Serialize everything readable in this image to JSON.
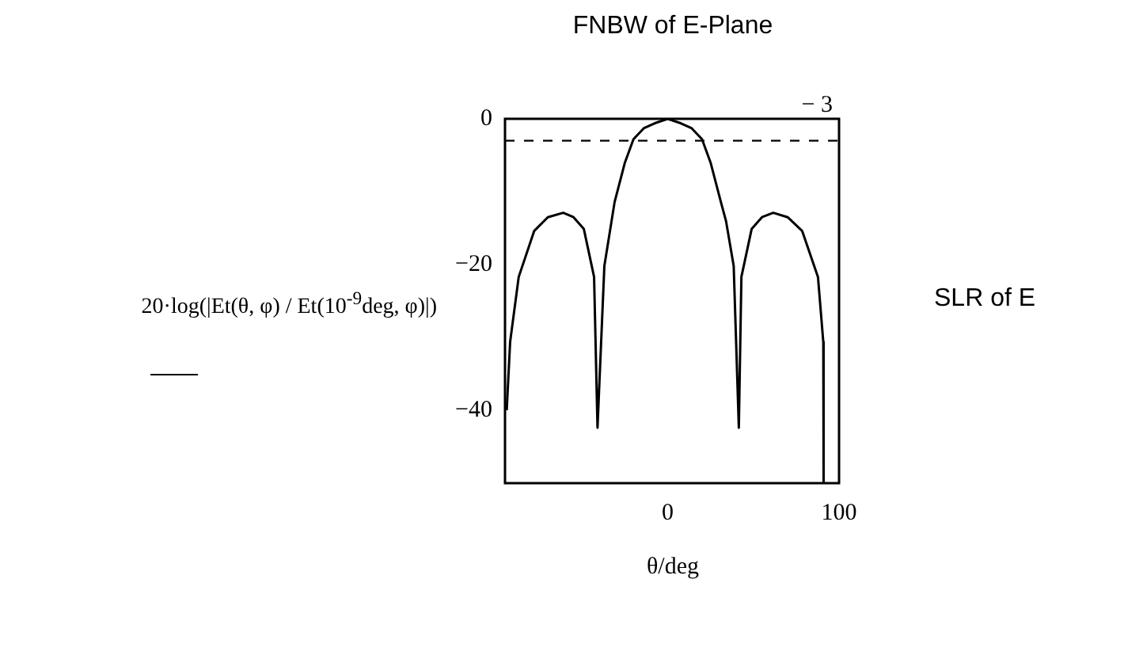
{
  "chart_data": {
    "type": "line",
    "title": "FNBW of E-Plane",
    "xlabel": "θ/deg",
    "ylabel": "20·log(|Et(θ, φ) / Et(10$^{-9}$deg, φ)|)",
    "annotations": [
      "SLR of E"
    ],
    "series": [
      {
        "color": "#000000",
        "x": [
          -94,
          -92,
          -87,
          -78,
          -70,
          -61,
          -55,
          -49,
          -43,
          -41,
          -37,
          -31,
          -25,
          -20,
          -14,
          -7.5,
          0,
          7.5,
          14,
          20,
          25,
          31,
          34,
          38.5,
          41.5,
          43,
          49,
          55,
          61.6,
          70,
          78.5,
          87.7,
          90.8,
          91
        ],
        "values": [
          -40,
          -30.6,
          -21.7,
          -15.4,
          -13.5,
          -12.9,
          -13.5,
          -15.1,
          -21.7,
          -42.4,
          -20.2,
          -11.4,
          -6,
          -2.8,
          -1.3,
          -0.6,
          0,
          -0.6,
          -1.3,
          -2.8,
          -6,
          -11.4,
          -14,
          -20.2,
          -42.4,
          -21.7,
          -15.1,
          -13.5,
          -12.9,
          -13.5,
          -15.4,
          -21.7,
          -30.6,
          -50
        ]
      }
    ],
    "xlim": [
      -95,
      100
    ],
    "xticks": [
      0,
      100
    ],
    "ylim": [
      -50,
      0
    ],
    "yticks": [
      0,
      {
        "value": -20,
        "label": "−20"
      },
      {
        "value": -40,
        "label": "−40"
      }
    ],
    "ref_lines": [
      {
        "axis": "y",
        "value": -3,
        "label": "− 3",
        "line_style": "dashed",
        "color": "#000000"
      }
    ],
    "grid": false,
    "legend": false,
    "marker": "none",
    "line_style": "solid"
  }
}
